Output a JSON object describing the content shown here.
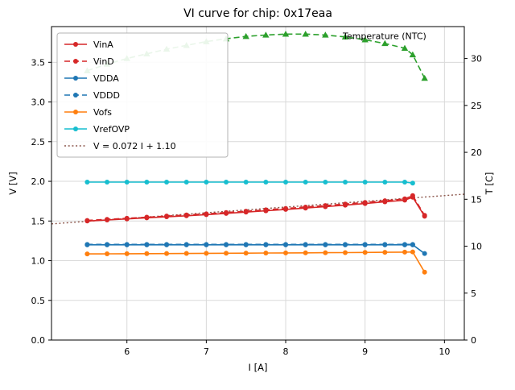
{
  "chart_data": {
    "type": "line",
    "title": "VI curve for chip: 0x17eaa",
    "xlabel": "I [A]",
    "ylabel_left": "V [V]",
    "ylabel_right": "T [C]",
    "xlim": [
      5.05,
      10.25
    ],
    "ylim_left": [
      0,
      3.95
    ],
    "ylim_right": [
      0,
      33.4
    ],
    "xticks": [
      6,
      7,
      8,
      9,
      10
    ],
    "xtick_labels": [
      "6",
      "7",
      "8",
      "9",
      "10"
    ],
    "yticks_left": [
      0.0,
      0.5,
      1.0,
      1.5,
      2.0,
      2.5,
      3.0,
      3.5
    ],
    "ytick_labels_left": [
      "0.0",
      "0.5",
      "1.0",
      "1.5",
      "2.0",
      "2.5",
      "3.0",
      "3.5"
    ],
    "yticks_right": [
      0,
      5,
      10,
      15,
      20,
      25,
      30
    ],
    "ytick_labels_right": [
      "0",
      "5",
      "10",
      "15",
      "20",
      "25",
      "30"
    ],
    "grid": true,
    "legend_position": "upper-left",
    "annotation": {
      "text": "Temperature (NTC)",
      "x": 8.72,
      "y": 32.05
    },
    "x": [
      5.5,
      5.75,
      6.0,
      6.25,
      6.5,
      6.75,
      7.0,
      7.25,
      7.5,
      7.75,
      8.0,
      8.25,
      8.5,
      8.75,
      9.0,
      9.25,
      9.5,
      9.6,
      9.75
    ],
    "series": [
      {
        "name": "VinA",
        "axis": "left",
        "color": "#d62728",
        "dash": "solid",
        "marker": "circle",
        "in_legend": true,
        "values": [
          1.5,
          1.513,
          1.526,
          1.54,
          1.553,
          1.566,
          1.58,
          1.596,
          1.612,
          1.629,
          1.646,
          1.663,
          1.681,
          1.7,
          1.72,
          1.741,
          1.763,
          1.8,
          1.56
        ]
      },
      {
        "name": "VinD",
        "axis": "left",
        "color": "#d62728",
        "dash": "dashed",
        "marker": "circle",
        "in_legend": true,
        "values": [
          1.507,
          1.521,
          1.534,
          1.548,
          1.562,
          1.576,
          1.59,
          1.607,
          1.623,
          1.641,
          1.658,
          1.676,
          1.694,
          1.714,
          1.734,
          1.756,
          1.779,
          1.82,
          1.572
        ]
      },
      {
        "name": "VDDA",
        "axis": "left",
        "color": "#1f77b4",
        "dash": "solid",
        "marker": "circle",
        "in_legend": true,
        "values": [
          1.2,
          1.2,
          1.2,
          1.2,
          1.2,
          1.2,
          1.2,
          1.2,
          1.2,
          1.2,
          1.2,
          1.2,
          1.2,
          1.2,
          1.2,
          1.2,
          1.2,
          1.2,
          1.09
        ]
      },
      {
        "name": "VDDD",
        "axis": "left",
        "color": "#1f77b4",
        "dash": "dashed",
        "marker": "circle",
        "in_legend": true,
        "values": [
          1.205,
          1.205,
          1.205,
          1.205,
          1.205,
          1.205,
          1.205,
          1.205,
          1.205,
          1.205,
          1.205,
          1.205,
          1.205,
          1.205,
          1.205,
          1.205,
          1.205,
          1.205,
          null
        ]
      },
      {
        "name": "Vofs",
        "axis": "left",
        "color": "#ff7f0e",
        "dash": "solid",
        "marker": "circle",
        "in_legend": true,
        "values": [
          1.085,
          1.086,
          1.088,
          1.089,
          1.09,
          1.091,
          1.093,
          1.094,
          1.095,
          1.097,
          1.098,
          1.099,
          1.101,
          1.102,
          1.104,
          1.106,
          1.108,
          1.11,
          0.855
        ]
      },
      {
        "name": "VrefOVP",
        "axis": "left",
        "color": "#17becf",
        "dash": "solid",
        "marker": "circle",
        "in_legend": true,
        "values": [
          1.99,
          1.99,
          1.99,
          1.99,
          1.99,
          1.99,
          1.99,
          1.99,
          1.99,
          1.99,
          1.99,
          1.99,
          1.99,
          1.99,
          1.99,
          1.99,
          1.99,
          1.978,
          null
        ]
      },
      {
        "name": "Temperature (NTC)",
        "axis": "right",
        "color": "#2ca02c",
        "dash": "dashed",
        "marker": "triangle",
        "in_legend": false,
        "values": [
          28.7,
          29.4,
          30.0,
          30.5,
          31.0,
          31.4,
          31.8,
          32.1,
          32.35,
          32.5,
          32.6,
          32.6,
          32.5,
          32.3,
          32.0,
          31.6,
          31.1,
          30.4,
          27.9
        ]
      }
    ],
    "fit": {
      "label": "V = 0.072 I + 1.10",
      "slope": 0.072,
      "intercept": 1.1,
      "color": "#8c564b",
      "dash": "dotted"
    },
    "colors": {
      "grid": "#d9d9d9",
      "frame": "#000000",
      "legend_border": "#b3b3b3",
      "legend_bg": "#ffffff"
    }
  }
}
